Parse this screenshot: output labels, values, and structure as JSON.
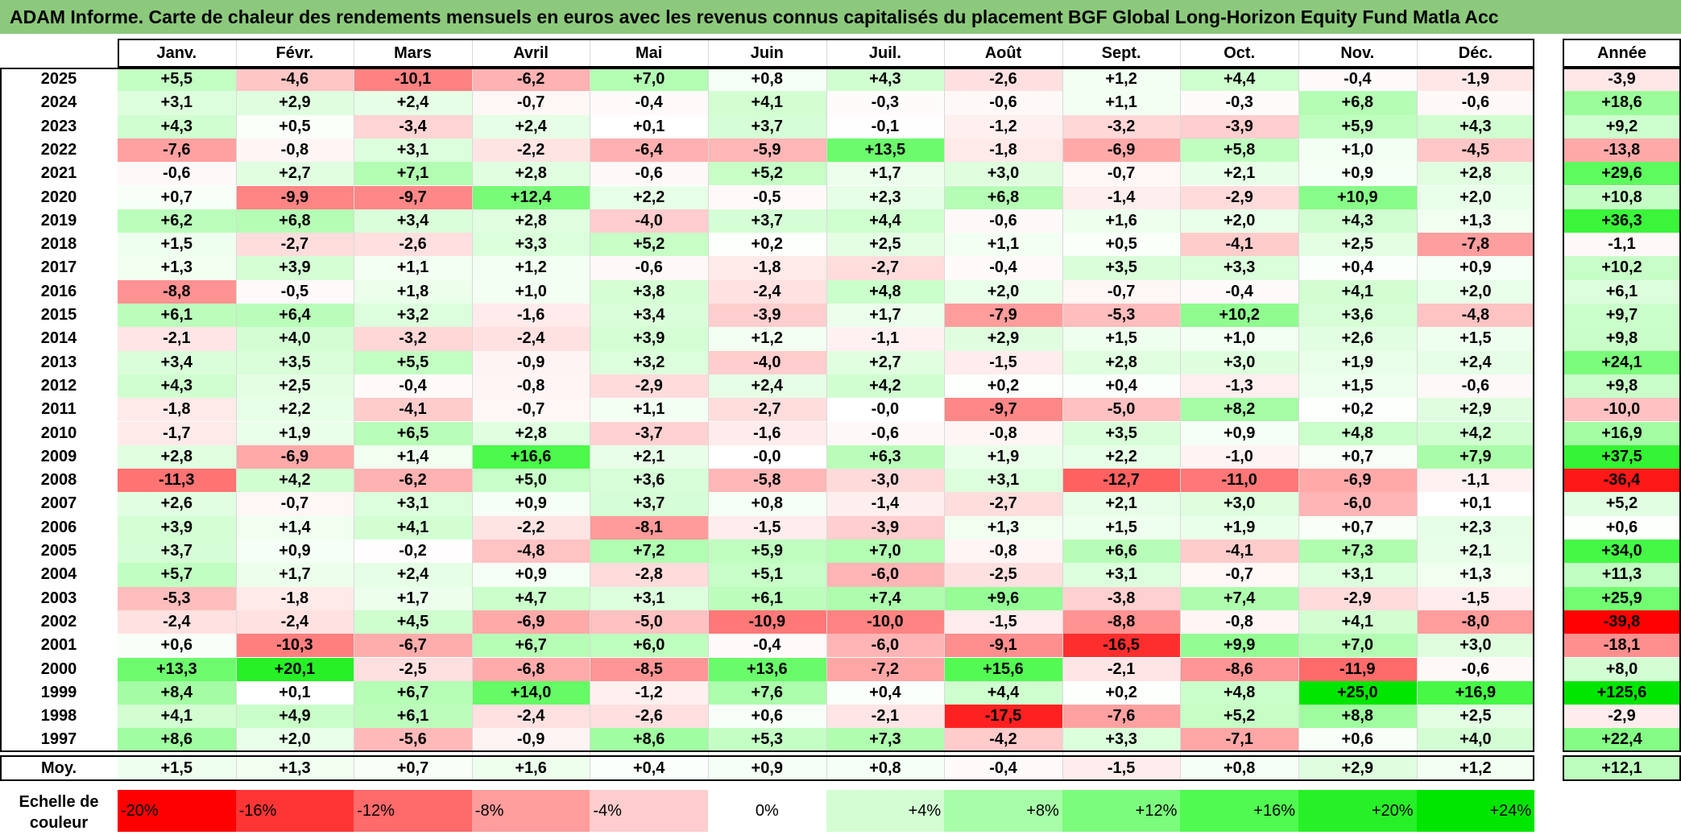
{
  "title": "ADAM Informe. Carte de chaleur des rendements mensuels en euros avec les revenus connus capitalisés du placement BGF Global Long-Horizon Equity Fund Matla Acc",
  "chart_data": {
    "type": "heatmap",
    "title": "ADAM Informe. Carte de chaleur des rendements mensuels en euros avec les revenus connus capitalisés du placement BGF Global Long-Horizon Equity Fund Matla Acc",
    "columns": [
      "Janv.",
      "Févr.",
      "Mars",
      "Avril",
      "Mai",
      "Juin",
      "Juil.",
      "Août",
      "Sept.",
      "Oct.",
      "Nov.",
      "Déc."
    ],
    "year_column": "Année",
    "rows": [
      {
        "year": "2025",
        "values": [
          "+5,5",
          "-4,6",
          "-10,1",
          "-6,2",
          "+7,0",
          "+0,8",
          "+4,3",
          "-2,6",
          "+1,2",
          "+4,4",
          "-0,4",
          "-1,9"
        ],
        "annual": "-3,9"
      },
      {
        "year": "2024",
        "values": [
          "+3,1",
          "+2,9",
          "+2,4",
          "-0,7",
          "-0,4",
          "+4,1",
          "-0,3",
          "-0,6",
          "+1,1",
          "-0,3",
          "+6,8",
          "-0,6"
        ],
        "annual": "+18,6"
      },
      {
        "year": "2023",
        "values": [
          "+4,3",
          "+0,5",
          "-3,4",
          "+2,4",
          "+0,1",
          "+3,7",
          "-0,1",
          "-1,2",
          "-3,2",
          "-3,9",
          "+5,9",
          "+4,3"
        ],
        "annual": "+9,2"
      },
      {
        "year": "2022",
        "values": [
          "-7,6",
          "-0,8",
          "+3,1",
          "-2,2",
          "-6,4",
          "-5,9",
          "+13,5",
          "-1,8",
          "-6,9",
          "+5,8",
          "+1,0",
          "-4,5"
        ],
        "annual": "-13,8"
      },
      {
        "year": "2021",
        "values": [
          "-0,6",
          "+2,7",
          "+7,1",
          "+2,8",
          "-0,6",
          "+5,2",
          "+1,7",
          "+3,0",
          "-0,7",
          "+2,1",
          "+0,9",
          "+2,8"
        ],
        "annual": "+29,6"
      },
      {
        "year": "2020",
        "values": [
          "+0,7",
          "-9,9",
          "-9,7",
          "+12,4",
          "+2,2",
          "-0,5",
          "+2,3",
          "+6,8",
          "-1,4",
          "-2,9",
          "+10,9",
          "+2,0"
        ],
        "annual": "+10,8"
      },
      {
        "year": "2019",
        "values": [
          "+6,2",
          "+6,8",
          "+3,4",
          "+2,8",
          "-4,0",
          "+3,7",
          "+4,4",
          "-0,6",
          "+1,6",
          "+2,0",
          "+4,3",
          "+1,3"
        ],
        "annual": "+36,3"
      },
      {
        "year": "2018",
        "values": [
          "+1,5",
          "-2,7",
          "-2,6",
          "+3,3",
          "+5,2",
          "+0,2",
          "+2,5",
          "+1,1",
          "+0,5",
          "-4,1",
          "+2,5",
          "-7,8"
        ],
        "annual": "-1,1"
      },
      {
        "year": "2017",
        "values": [
          "+1,3",
          "+3,9",
          "+1,1",
          "+1,2",
          "-0,6",
          "-1,8",
          "-2,7",
          "-0,4",
          "+3,5",
          "+3,3",
          "+0,4",
          "+0,9"
        ],
        "annual": "+10,2"
      },
      {
        "year": "2016",
        "values": [
          "-8,8",
          "-0,5",
          "+1,8",
          "+1,0",
          "+3,8",
          "-2,4",
          "+4,8",
          "+2,0",
          "-0,7",
          "-0,4",
          "+4,1",
          "+2,0"
        ],
        "annual": "+6,1"
      },
      {
        "year": "2015",
        "values": [
          "+6,1",
          "+6,4",
          "+3,2",
          "-1,6",
          "+3,4",
          "-3,9",
          "+1,7",
          "-7,9",
          "-5,3",
          "+10,2",
          "+3,6",
          "-4,8"
        ],
        "annual": "+9,7"
      },
      {
        "year": "2014",
        "values": [
          "-2,1",
          "+4,0",
          "-3,2",
          "-2,4",
          "+3,9",
          "+1,2",
          "-1,1",
          "+2,9",
          "+1,5",
          "+1,0",
          "+2,6",
          "+1,5"
        ],
        "annual": "+9,8"
      },
      {
        "year": "2013",
        "values": [
          "+3,4",
          "+3,5",
          "+5,5",
          "-0,9",
          "+3,2",
          "-4,0",
          "+2,7",
          "-1,5",
          "+2,8",
          "+3,0",
          "+1,9",
          "+2,4"
        ],
        "annual": "+24,1"
      },
      {
        "year": "2012",
        "values": [
          "+4,3",
          "+2,5",
          "-0,4",
          "-0,8",
          "-2,9",
          "+2,4",
          "+4,2",
          "+0,2",
          "+0,4",
          "-1,3",
          "+1,5",
          "-0,6"
        ],
        "annual": "+9,8"
      },
      {
        "year": "2011",
        "values": [
          "-1,8",
          "+2,2",
          "-4,1",
          "-0,7",
          "+1,1",
          "-2,7",
          "-0,0",
          "-9,7",
          "-5,0",
          "+8,2",
          "+0,2",
          "+2,9"
        ],
        "annual": "-10,0"
      },
      {
        "year": "2010",
        "values": [
          "-1,7",
          "+1,9",
          "+6,5",
          "+2,8",
          "-3,7",
          "-1,6",
          "-0,6",
          "-0,8",
          "+3,5",
          "+0,9",
          "+4,8",
          "+4,2"
        ],
        "annual": "+16,9"
      },
      {
        "year": "2009",
        "values": [
          "+2,8",
          "-6,9",
          "+1,4",
          "+16,6",
          "+2,1",
          "-0,0",
          "+6,3",
          "+1,9",
          "+2,2",
          "-1,0",
          "+0,7",
          "+7,9"
        ],
        "annual": "+37,5"
      },
      {
        "year": "2008",
        "values": [
          "-11,3",
          "+4,2",
          "-6,2",
          "+5,0",
          "+3,6",
          "-5,8",
          "-3,0",
          "+3,1",
          "-12,7",
          "-11,0",
          "-6,9",
          "-1,1"
        ],
        "annual": "-36,4"
      },
      {
        "year": "2007",
        "values": [
          "+2,6",
          "-0,7",
          "+3,1",
          "+0,9",
          "+3,7",
          "+0,8",
          "-1,4",
          "-2,7",
          "+2,1",
          "+3,0",
          "-6,0",
          "+0,1"
        ],
        "annual": "+5,2"
      },
      {
        "year": "2006",
        "values": [
          "+3,9",
          "+1,4",
          "+4,1",
          "-2,2",
          "-8,1",
          "-1,5",
          "-3,9",
          "+1,3",
          "+1,5",
          "+1,9",
          "+0,7",
          "+2,3"
        ],
        "annual": "+0,6"
      },
      {
        "year": "2005",
        "values": [
          "+3,7",
          "+0,9",
          "-0,2",
          "-4,8",
          "+7,2",
          "+5,9",
          "+7,0",
          "-0,8",
          "+6,6",
          "-4,1",
          "+7,3",
          "+2,1"
        ],
        "annual": "+34,0"
      },
      {
        "year": "2004",
        "values": [
          "+5,7",
          "+1,7",
          "+2,4",
          "+0,9",
          "-2,8",
          "+5,1",
          "-6,0",
          "-2,5",
          "+3,1",
          "-0,7",
          "+3,1",
          "+1,3"
        ],
        "annual": "+11,3"
      },
      {
        "year": "2003",
        "values": [
          "-5,3",
          "-1,8",
          "+1,7",
          "+4,7",
          "+3,1",
          "+6,1",
          "+7,4",
          "+9,6",
          "-3,8",
          "+7,4",
          "-2,9",
          "-1,5"
        ],
        "annual": "+25,9"
      },
      {
        "year": "2002",
        "values": [
          "-2,4",
          "-2,4",
          "+4,5",
          "-6,9",
          "-5,0",
          "-10,9",
          "-10,0",
          "-1,5",
          "-8,8",
          "-0,8",
          "+4,1",
          "-8,0"
        ],
        "annual": "-39,8"
      },
      {
        "year": "2001",
        "values": [
          "+0,6",
          "-10,3",
          "-6,7",
          "+6,7",
          "+6,0",
          "-0,4",
          "-6,0",
          "-9,1",
          "-16,5",
          "+9,9",
          "+7,0",
          "+3,0"
        ],
        "annual": "-18,1"
      },
      {
        "year": "2000",
        "values": [
          "+13,3",
          "+20,1",
          "-2,5",
          "-6,8",
          "-8,5",
          "+13,6",
          "-7,2",
          "+15,6",
          "-2,1",
          "-8,6",
          "-11,9",
          "-0,6"
        ],
        "annual": "+8,0"
      },
      {
        "year": "1999",
        "values": [
          "+8,4",
          "+0,1",
          "+6,7",
          "+14,0",
          "-1,2",
          "+7,6",
          "+0,4",
          "+4,4",
          "+0,2",
          "+4,8",
          "+25,0",
          "+16,9"
        ],
        "annual": "+125,6"
      },
      {
        "year": "1998",
        "values": [
          "+4,1",
          "+4,9",
          "+6,1",
          "-2,4",
          "-2,6",
          "+0,6",
          "-2,1",
          "-17,5",
          "-7,6",
          "+5,2",
          "+8,8",
          "+2,5"
        ],
        "annual": "-2,9"
      },
      {
        "year": "1997",
        "values": [
          "+8,6",
          "+2,0",
          "-5,6",
          "-0,9",
          "+8,6",
          "+5,3",
          "+7,3",
          "-4,2",
          "+3,3",
          "-7,1",
          "+0,6",
          "+4,0"
        ],
        "annual": "+22,4"
      }
    ],
    "average": {
      "label": "Moy.",
      "values": [
        "+1,5",
        "+1,3",
        "+0,7",
        "+1,6",
        "+0,4",
        "+0,9",
        "+0,8",
        "-0,4",
        "-1,5",
        "+0,8",
        "+2,9",
        "+1,2"
      ],
      "annual": "+12,1"
    },
    "scale": {
      "label": "Echelle de couleur",
      "stops": [
        {
          "label": "-20%",
          "value": -20,
          "color": "#ff0000"
        },
        {
          "label": "-16%",
          "value": -16,
          "color": "#ff3535"
        },
        {
          "label": "-12%",
          "value": -12,
          "color": "#ff6a6a"
        },
        {
          "label": "-8%",
          "value": -8,
          "color": "#ff9c9c"
        },
        {
          "label": "-4%",
          "value": -4,
          "color": "#ffcdcd"
        },
        {
          "label": "0%",
          "value": 0,
          "color": "#ffffff"
        },
        {
          "label": "+4%",
          "value": 4,
          "color": "#d3fed3"
        },
        {
          "label": "+8%",
          "value": 8,
          "color": "#a8fda8"
        },
        {
          "label": "+12%",
          "value": 12,
          "color": "#7cfc7c"
        },
        {
          "label": "+16%",
          "value": 16,
          "color": "#50fa50"
        },
        {
          "label": "+20%",
          "value": 20,
          "color": "#28f028"
        },
        {
          "label": "+24%",
          "value": 24,
          "color": "#00e600"
        }
      ]
    }
  }
}
